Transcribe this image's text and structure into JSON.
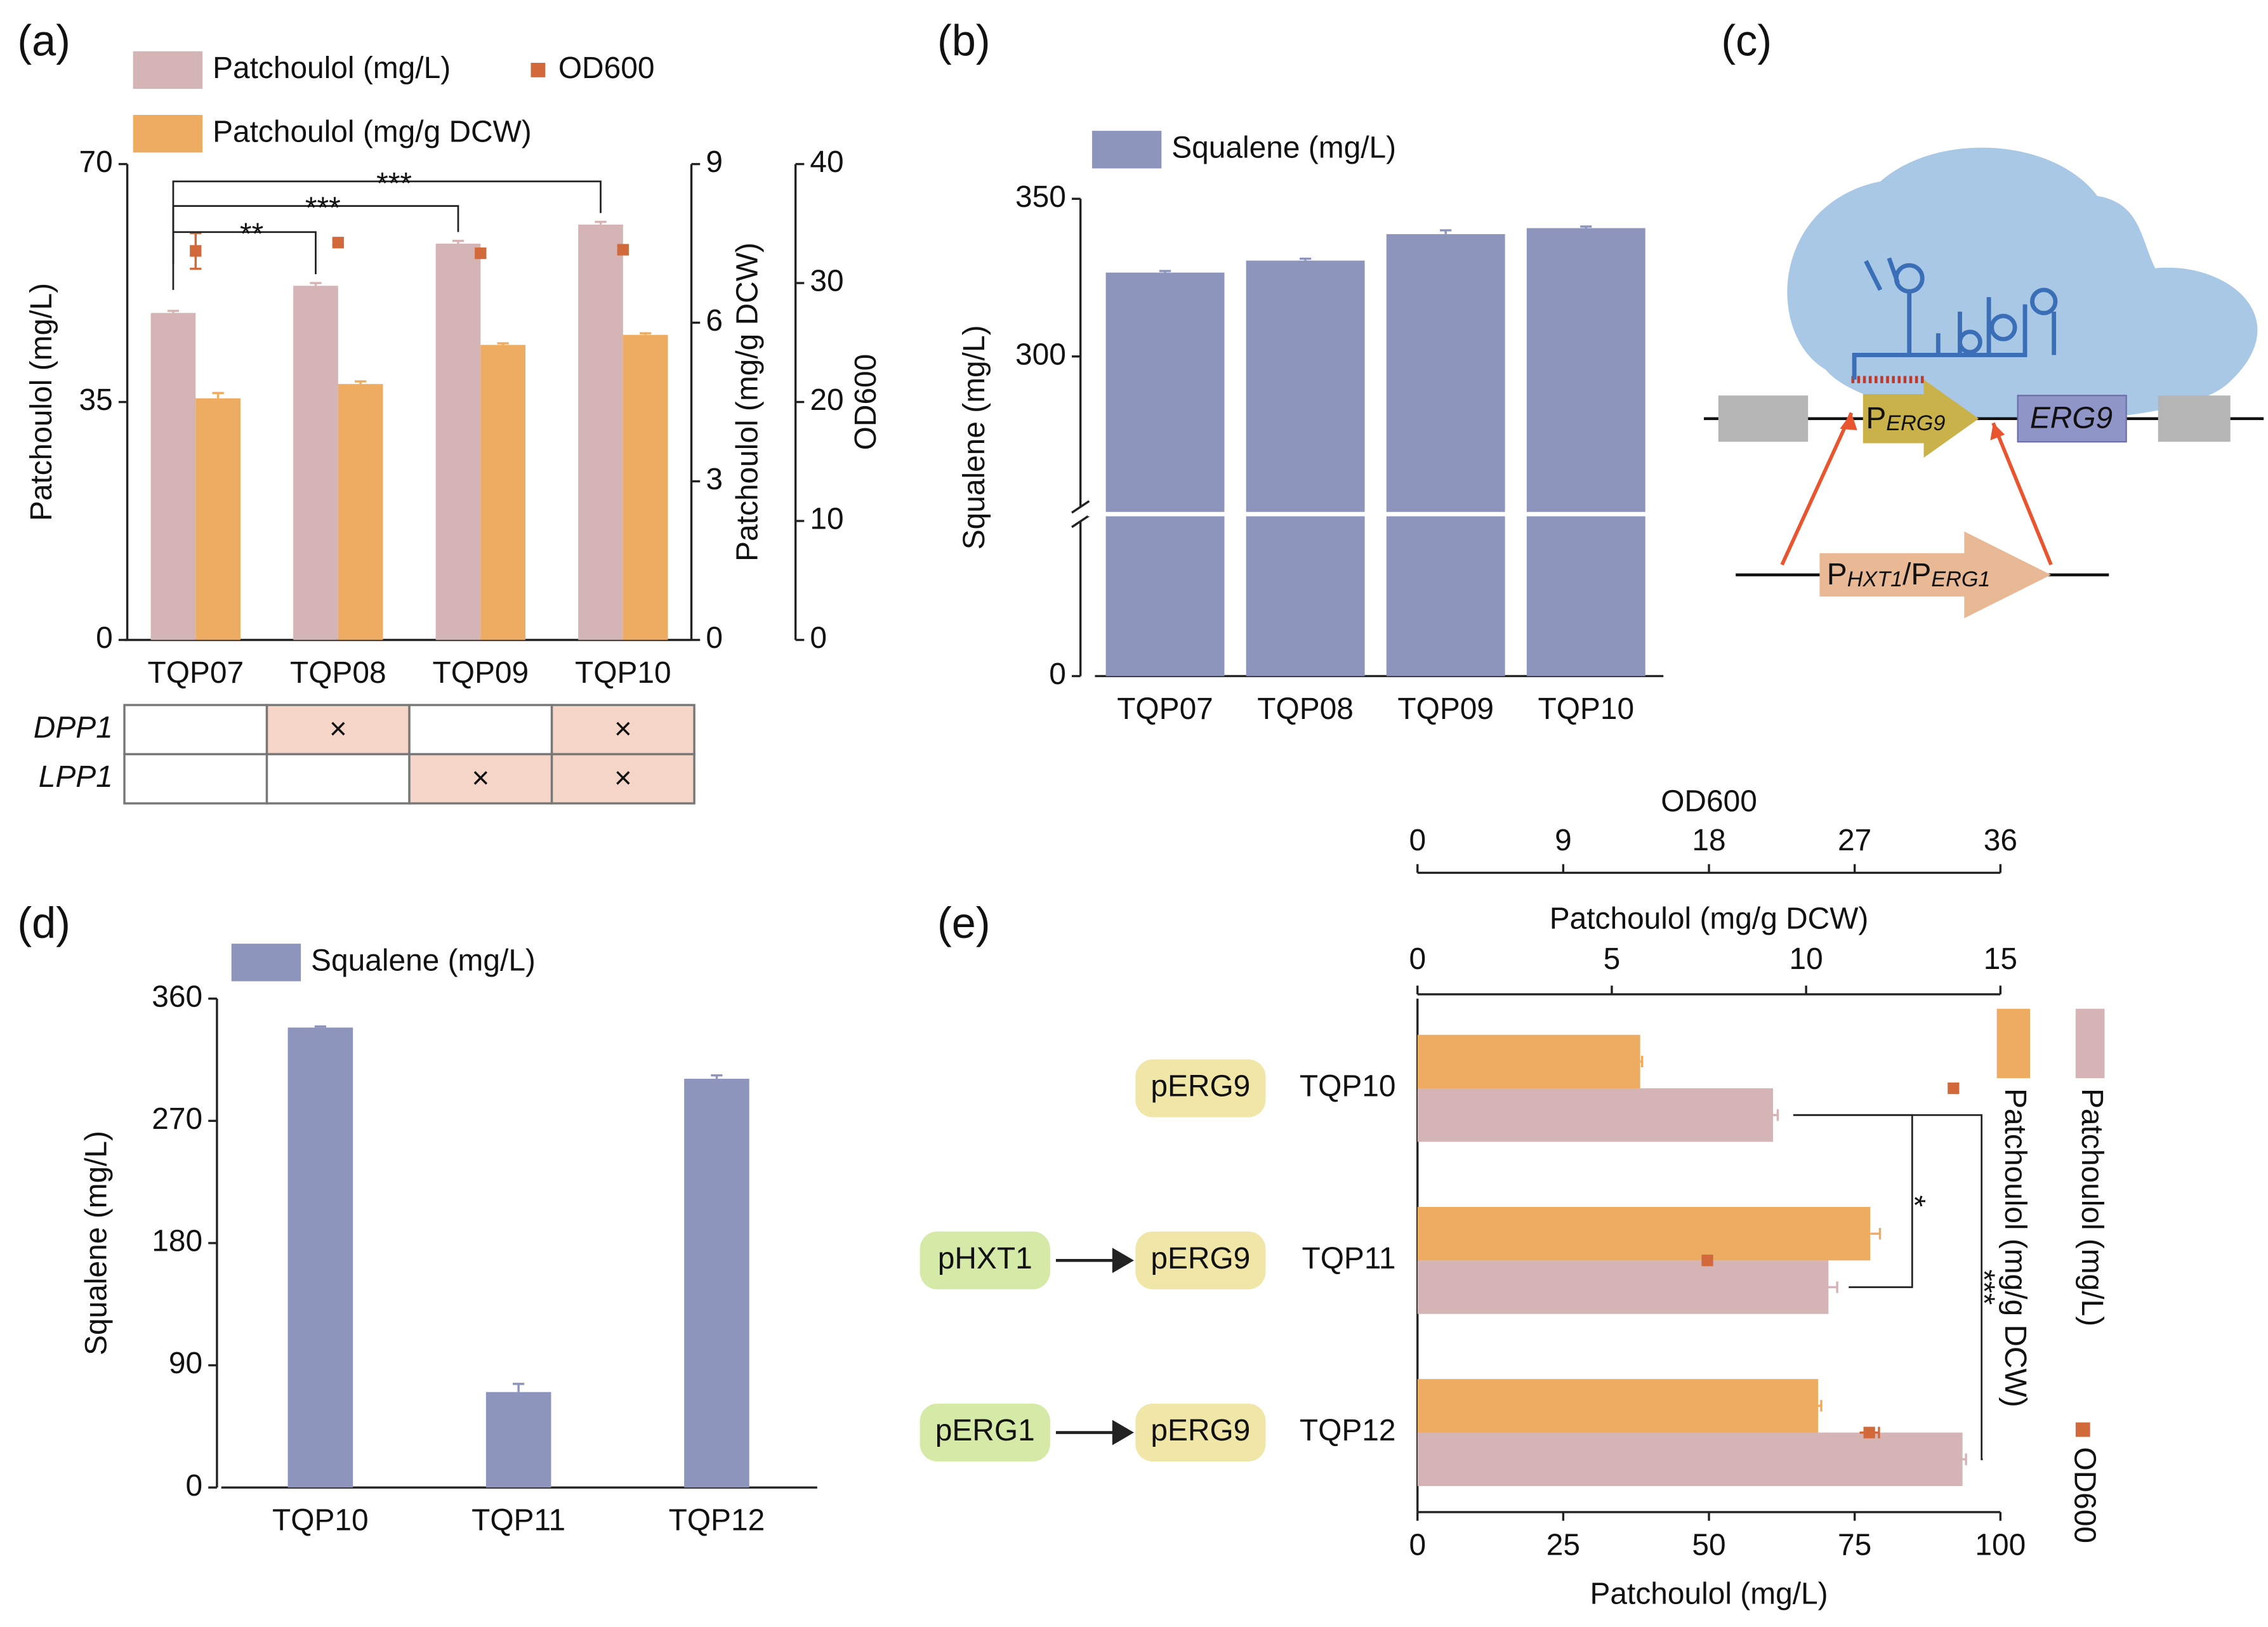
{
  "chart_data": [
    {
      "panel": "(a)",
      "type": "bar",
      "categories": [
        "TQP07",
        "TQP08",
        "TQP09",
        "TQP10"
      ],
      "ylabel": "Patchoulol (mg/L)",
      "y2label": "Patchoulol (mg/g DCW)",
      "y3label": "OD600",
      "ylim": [
        0,
        70
      ],
      "yticks": [
        0,
        35,
        70
      ],
      "y2lim": [
        0,
        9
      ],
      "y2ticks": [
        0,
        3,
        6,
        9
      ],
      "y3lim": [
        0,
        40
      ],
      "y3ticks": [
        0,
        10,
        20,
        30,
        40
      ],
      "series": [
        {
          "name": "Patchoulol (mg/L)",
          "color": "#d4b4b4",
          "values": [
            48.1,
            52.1,
            58.3,
            61.1
          ],
          "errors": [
            0.3,
            0.4,
            0.4,
            0.4
          ]
        },
        {
          "name": "Patchoulol (mg/g DCW)",
          "color": "#eeab62",
          "axis": "y2",
          "values": [
            4.57,
            4.84,
            5.58,
            5.77
          ],
          "errors": [
            0.1,
            0.05,
            0.03,
            0.03
          ]
        },
        {
          "name": "OD600",
          "color": "#d1693b",
          "axis": "y3",
          "marker": "square",
          "values": [
            32.7,
            33.4,
            32.5,
            32.8
          ],
          "errors": [
            1.5,
            0.3,
            0.3,
            0.3
          ]
        }
      ],
      "annotations": [
        {
          "text": "**",
          "from": 0,
          "to": 1
        },
        {
          "text": "***",
          "from": 0,
          "to": 2
        },
        {
          "text": "***",
          "from": 0,
          "to": 3
        }
      ],
      "table": {
        "mark_symbol": "×",
        "rows": [
          {
            "label": "DPP1",
            "marks": [
              false,
              true,
              false,
              true
            ]
          },
          {
            "label": "LPP1",
            "marks": [
              false,
              false,
              true,
              true
            ]
          }
        ]
      }
    },
    {
      "panel": "(b)",
      "type": "bar",
      "categories": [
        "TQP07",
        "TQP08",
        "TQP09",
        "TQP10"
      ],
      "ylabel": "Squalene (mg/L)",
      "ylim": [
        0,
        350
      ],
      "yticks": [
        0,
        300,
        350
      ],
      "axis_break": [
        50,
        250
      ],
      "series": [
        {
          "name": "Squalene (mg/L)",
          "color": "#8e95bd",
          "values": [
            326.6,
            330.4,
            338.8,
            340.7
          ],
          "errors": [
            0.5,
            0.6,
            1.2,
            0.5
          ]
        }
      ]
    },
    {
      "panel": "(d)",
      "type": "bar",
      "categories": [
        "TQP10",
        "TQP11",
        "TQP12"
      ],
      "ylabel": "Squalene (mg/L)",
      "ylim": [
        0,
        360
      ],
      "yticks": [
        0,
        90,
        180,
        270,
        360
      ],
      "series": [
        {
          "name": "Squalene (mg/L)",
          "color": "#8e95bd",
          "values": [
            338.7,
            70.3,
            301
          ],
          "errors": [
            0.8,
            6,
            2.5
          ]
        }
      ]
    },
    {
      "panel": "(e)",
      "type": "barh",
      "categories": [
        "TQP10",
        "TQP11",
        "TQP12"
      ],
      "promoters": [
        [
          "pERG9"
        ],
        [
          "pHXT1",
          "pERG9"
        ],
        [
          "pERG1",
          "pERG9"
        ]
      ],
      "xlabel": "Patchoulol (mg/L)",
      "x2label": "Patchoulol (mg/g DCW)",
      "x3label": "OD600",
      "xlim": [
        0,
        100
      ],
      "xticks": [
        0,
        25,
        50,
        75,
        100
      ],
      "x2lim": [
        0,
        15
      ],
      "x2ticks": [
        0,
        5,
        10,
        15
      ],
      "x3lim": [
        0,
        36
      ],
      "x3ticks": [
        0,
        9,
        18,
        27,
        36
      ],
      "series": [
        {
          "name": "Patchoulol (mg/L)",
          "color": "#d4b4b4",
          "values": [
            61,
            70.5,
            93.5
          ],
          "errors": [
            0.8,
            1.5,
            0.6
          ]
        },
        {
          "name": "Patchoulol (mg/g DCW)",
          "color": "#eeab62",
          "axis": "x2",
          "values": [
            5.73,
            11.65,
            10.31
          ],
          "errors": [
            0.05,
            0.25,
            0.08
          ]
        },
        {
          "name": "OD600",
          "color": "#d1693b",
          "axis": "x3",
          "marker": "square",
          "values": [
            33.1,
            17.9,
            27.9
          ],
          "errors": [
            0.2,
            0.2,
            0.6
          ]
        }
      ],
      "annotations": [
        {
          "text": "*",
          "from": 0,
          "to": 1
        },
        {
          "text": "***",
          "from": 0,
          "to": 2
        }
      ]
    }
  ],
  "diagram": {
    "panel": "(c)",
    "promoter": [
      "P",
      "ERG9"
    ],
    "gene": "ERG9",
    "donor": [
      "P",
      "HXT1",
      "/P",
      "ERG1"
    ]
  }
}
